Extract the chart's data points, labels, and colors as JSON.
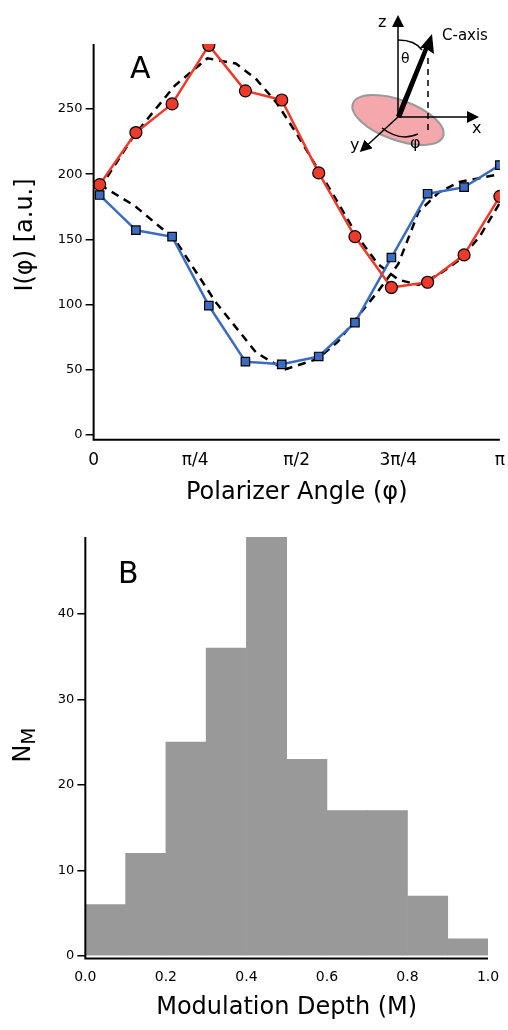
{
  "chart_data": [
    {
      "type": "line",
      "xlabel": "Polarizer Angle (φ)",
      "ylabel": "I(φ) [a.u.]",
      "annotations": [
        "A",
        "C-axis",
        "z",
        "x",
        "y",
        "θ",
        "φ"
      ],
      "xlim": [
        0,
        3.142
      ],
      "xticks": [
        0,
        {
          "value": 0.7854,
          "label": "π/4"
        },
        {
          "value": 1.5708,
          "label": "π/2"
        },
        {
          "value": 2.3562,
          "label": "3π/4"
        },
        {
          "value": 3.142,
          "label": "π"
        }
      ],
      "ylim": [
        -4,
        300
      ],
      "yticks": [
        0,
        50,
        100,
        150,
        200,
        250
      ],
      "grid": false,
      "legend": false,
      "series": [
        {
          "color": "#ee3a2a",
          "marker": "circle",
          "line_style": "solid",
          "x": [
            0.047,
            0.327,
            0.607,
            0.891,
            1.174,
            1.455,
            1.741,
            2.021,
            2.303,
            2.583,
            2.865,
            3.142
          ],
          "values": [
            192,
            232,
            254,
            299,
            264,
            257,
            201,
            152,
            113,
            117,
            138,
            183
          ]
        },
        {
          "color": "#3b6cc0",
          "marker": "square",
          "line_style": "solid",
          "x": [
            0.047,
            0.327,
            0.607,
            0.891,
            1.174,
            1.455,
            1.741,
            2.021,
            2.303,
            2.583,
            2.865,
            3.142
          ],
          "values": [
            184,
            157,
            152,
            99,
            56,
            54,
            60,
            86,
            136,
            185,
            190,
            207
          ]
        },
        {
          "color": "#000000",
          "marker": "none",
          "line_style": "dashed",
          "x": [
            0.047,
            0.314,
            0.628,
            0.88,
            1.1,
            1.257,
            1.414,
            1.571,
            1.728,
            1.885,
            2.042,
            2.199,
            2.356,
            2.513,
            2.67,
            2.827,
            2.985,
            3.142
          ],
          "values": [
            189,
            230,
            268,
            289,
            285,
            273,
            255,
            231,
            205,
            179,
            152,
            131,
            119,
            115,
            123,
            134,
            152,
            178
          ]
        },
        {
          "color": "#000000",
          "marker": "none",
          "line_style": "dashed",
          "x": [
            0.047,
            0.314,
            0.628,
            0.942,
            1.257,
            1.477,
            1.728,
            1.885,
            2.199,
            2.356,
            2.513,
            2.67,
            2.827,
            3.142
          ],
          "values": [
            192,
            176,
            150,
            102,
            63,
            50,
            58,
            71,
            110,
            131,
            171,
            186,
            194,
            200
          ]
        }
      ]
    },
    {
      "type": "histogram",
      "xlabel": "Modulation Depth (M)",
      "ylabel": "N$_{M}$",
      "annotations": [
        "B"
      ],
      "bins": [
        0,
        0.1,
        0.2,
        0.3,
        0.4,
        0.5,
        0.6,
        0.7,
        0.8,
        0.9,
        1.0
      ],
      "values": [
        6,
        12,
        25,
        36,
        49,
        23,
        17,
        17,
        7,
        2
      ],
      "color": "#999999",
      "xlim": [
        0,
        1
      ],
      "xticks": [
        {
          "value": 0,
          "label": "0.0"
        },
        0.2,
        0.4,
        0.6,
        0.8,
        {
          "value": 1,
          "label": "1.0"
        }
      ],
      "ylim": [
        -0.3,
        49
      ],
      "yticks": [
        0,
        10,
        20,
        30,
        40
      ],
      "grid": false,
      "legend": false
    }
  ]
}
